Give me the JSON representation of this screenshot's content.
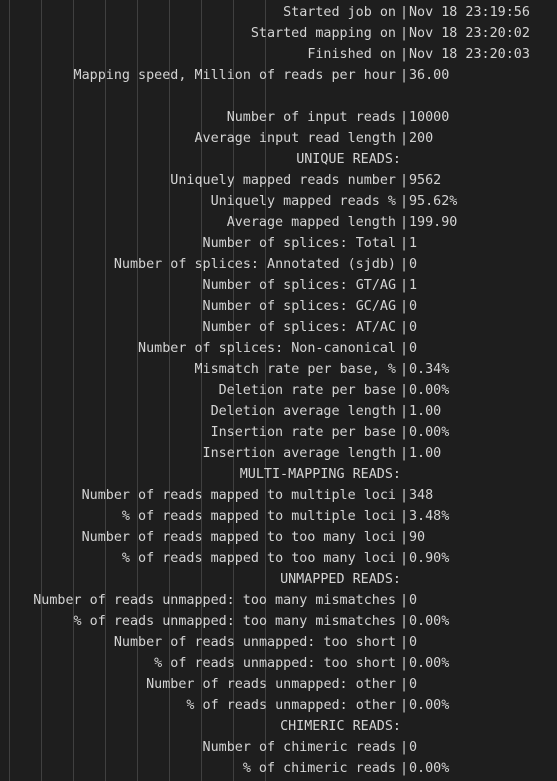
{
  "log": {
    "separator": "|",
    "rows": [
      {
        "label": "Started job on",
        "value": "Nov 18 23:19:56"
      },
      {
        "label": "Started mapping on",
        "value": "Nov 18 23:20:02"
      },
      {
        "label": "Finished on",
        "value": "Nov 18 23:20:03"
      },
      {
        "label": "Mapping speed, Million of reads per hour",
        "value": "36.00"
      },
      {
        "label": "",
        "value": ""
      },
      {
        "label": "Number of input reads",
        "value": "10000"
      },
      {
        "label": "Average input read length",
        "value": "200"
      },
      {
        "label": "UNIQUE READS:",
        "section": true
      },
      {
        "label": "Uniquely mapped reads number",
        "value": "9562"
      },
      {
        "label": "Uniquely mapped reads %",
        "value": "95.62%"
      },
      {
        "label": "Average mapped length",
        "value": "199.90"
      },
      {
        "label": "Number of splices: Total",
        "value": "1"
      },
      {
        "label": "Number of splices: Annotated (sjdb)",
        "value": "0"
      },
      {
        "label": "Number of splices: GT/AG",
        "value": "1"
      },
      {
        "label": "Number of splices: GC/AG",
        "value": "0"
      },
      {
        "label": "Number of splices: AT/AC",
        "value": "0"
      },
      {
        "label": "Number of splices: Non-canonical",
        "value": "0"
      },
      {
        "label": "Mismatch rate per base, %",
        "value": "0.34%"
      },
      {
        "label": "Deletion rate per base",
        "value": "0.00%"
      },
      {
        "label": "Deletion average length",
        "value": "1.00"
      },
      {
        "label": "Insertion rate per base",
        "value": "0.00%"
      },
      {
        "label": "Insertion average length",
        "value": "1.00"
      },
      {
        "label": "MULTI-MAPPING READS:",
        "section": true
      },
      {
        "label": "Number of reads mapped to multiple loci",
        "value": "348"
      },
      {
        "label": "% of reads mapped to multiple loci",
        "value": "3.48%"
      },
      {
        "label": "Number of reads mapped to too many loci",
        "value": "90"
      },
      {
        "label": "% of reads mapped to too many loci",
        "value": "0.90%"
      },
      {
        "label": "UNMAPPED READS:",
        "section": true
      },
      {
        "label": "Number of reads unmapped: too many mismatches",
        "value": "0"
      },
      {
        "label": "% of reads unmapped: too many mismatches",
        "value": "0.00%"
      },
      {
        "label": "Number of reads unmapped: too short",
        "value": "0"
      },
      {
        "label": "% of reads unmapped: too short",
        "value": "0.00%"
      },
      {
        "label": "Number of reads unmapped: other",
        "value": "0"
      },
      {
        "label": "% of reads unmapped: other",
        "value": "0.00%"
      },
      {
        "label": "CHIMERIC READS:",
        "section": true
      },
      {
        "label": "Number of chimeric reads",
        "value": "0"
      },
      {
        "label": "% of chimeric reads",
        "value": "0.00%"
      }
    ]
  }
}
